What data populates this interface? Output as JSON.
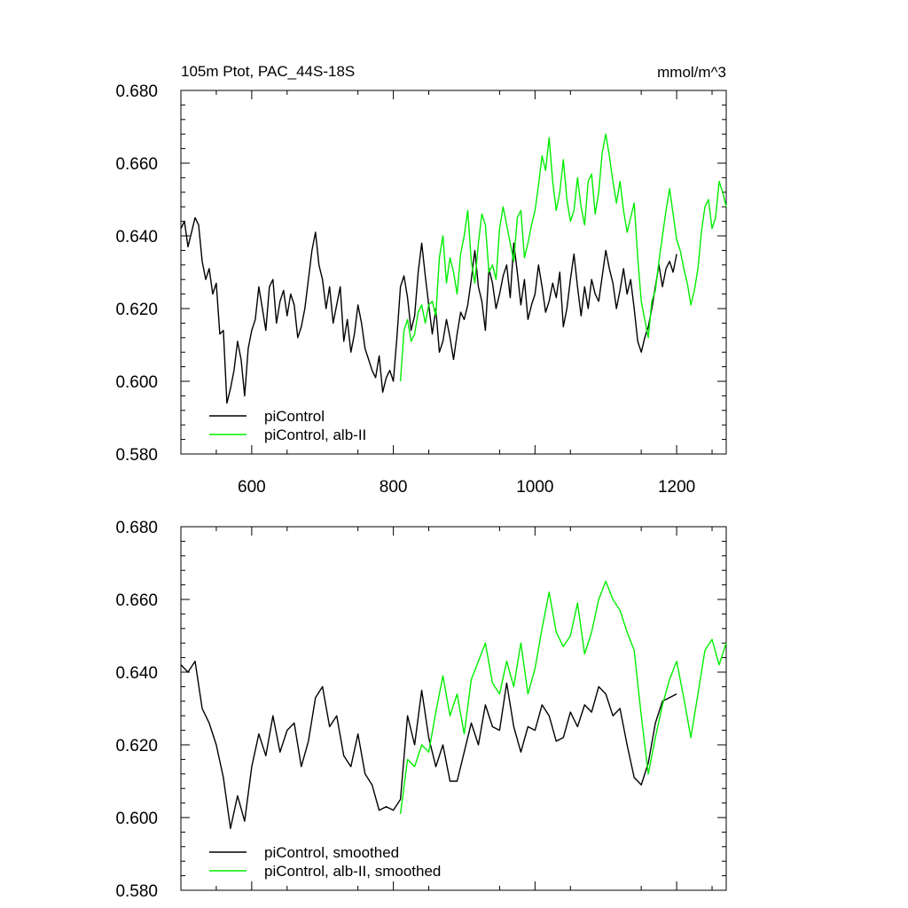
{
  "colors": {
    "piControl": "#000000",
    "alb_II": "#00ee00"
  },
  "chart_data": [
    {
      "type": "line",
      "title": "105m Ptot, PAC_44S-18S",
      "units": "mmol/m^3",
      "xlim": [
        500,
        1270
      ],
      "ylim": [
        0.58,
        0.68
      ],
      "xticks": [
        600,
        800,
        1000,
        1200
      ],
      "xtick_labels": [
        "600",
        "800",
        "1000",
        "1200"
      ],
      "yticks": [
        0.58,
        0.6,
        0.62,
        0.64,
        0.66,
        0.68
      ],
      "ytick_labels": [
        "0.580",
        "0.600",
        "0.620",
        "0.640",
        "0.660",
        "0.680"
      ],
      "legend_position": "bottom-left",
      "series": [
        {
          "name": "piControl",
          "color": "#000000",
          "x": [
            500,
            505,
            510,
            515,
            520,
            525,
            530,
            535,
            540,
            545,
            550,
            555,
            560,
            565,
            570,
            575,
            580,
            585,
            590,
            595,
            600,
            605,
            610,
            615,
            620,
            625,
            630,
            635,
            640,
            645,
            650,
            655,
            660,
            665,
            670,
            675,
            680,
            685,
            690,
            695,
            700,
            705,
            710,
            715,
            720,
            725,
            730,
            735,
            740,
            745,
            750,
            755,
            760,
            765,
            770,
            775,
            780,
            785,
            790,
            795,
            800,
            805,
            810,
            815,
            820,
            825,
            830,
            835,
            840,
            845,
            850,
            855,
            860,
            865,
            870,
            875,
            880,
            885,
            890,
            895,
            900,
            905,
            910,
            915,
            920,
            925,
            930,
            935,
            940,
            945,
            950,
            955,
            960,
            965,
            970,
            975,
            980,
            985,
            990,
            995,
            1000,
            1005,
            1010,
            1015,
            1020,
            1025,
            1030,
            1035,
            1040,
            1045,
            1050,
            1055,
            1060,
            1065,
            1070,
            1075,
            1080,
            1085,
            1090,
            1095,
            1100,
            1105,
            1110,
            1115,
            1120,
            1125,
            1130,
            1135,
            1140,
            1145,
            1150,
            1155,
            1160,
            1165,
            1170,
            1175,
            1180,
            1185,
            1190,
            1195,
            1200
          ],
          "y": [
            0.642,
            0.644,
            0.637,
            0.641,
            0.645,
            0.643,
            0.633,
            0.628,
            0.631,
            0.624,
            0.627,
            0.613,
            0.614,
            0.594,
            0.598,
            0.603,
            0.611,
            0.606,
            0.596,
            0.609,
            0.614,
            0.617,
            0.626,
            0.62,
            0.614,
            0.626,
            0.628,
            0.616,
            0.622,
            0.625,
            0.618,
            0.624,
            0.621,
            0.612,
            0.615,
            0.62,
            0.628,
            0.636,
            0.641,
            0.632,
            0.628,
            0.62,
            0.626,
            0.616,
            0.621,
            0.626,
            0.611,
            0.617,
            0.608,
            0.613,
            0.621,
            0.616,
            0.609,
            0.606,
            0.603,
            0.601,
            0.607,
            0.597,
            0.601,
            0.603,
            0.6,
            0.612,
            0.626,
            0.629,
            0.623,
            0.614,
            0.618,
            0.63,
            0.638,
            0.629,
            0.621,
            0.613,
            0.62,
            0.608,
            0.611,
            0.617,
            0.612,
            0.606,
            0.613,
            0.619,
            0.617,
            0.621,
            0.628,
            0.636,
            0.626,
            0.622,
            0.614,
            0.631,
            0.627,
            0.62,
            0.624,
            0.629,
            0.632,
            0.623,
            0.638,
            0.63,
            0.621,
            0.628,
            0.617,
            0.621,
            0.624,
            0.632,
            0.626,
            0.619,
            0.622,
            0.627,
            0.623,
            0.63,
            0.615,
            0.62,
            0.628,
            0.635,
            0.626,
            0.618,
            0.626,
            0.62,
            0.628,
            0.624,
            0.622,
            0.629,
            0.636,
            0.631,
            0.627,
            0.62,
            0.625,
            0.631,
            0.624,
            0.628,
            0.62,
            0.611,
            0.608,
            0.612,
            0.615,
            0.62,
            0.626,
            0.632,
            0.626,
            0.631,
            0.633,
            0.63,
            0.635
          ]
        },
        {
          "name": "piControl, alb-II",
          "color": "#00ee00",
          "x": [
            810,
            815,
            820,
            825,
            830,
            835,
            840,
            845,
            850,
            855,
            860,
            865,
            870,
            875,
            880,
            885,
            890,
            895,
            900,
            905,
            910,
            915,
            920,
            925,
            930,
            935,
            940,
            945,
            950,
            955,
            960,
            965,
            970,
            975,
            980,
            985,
            990,
            995,
            1000,
            1005,
            1010,
            1015,
            1020,
            1025,
            1030,
            1035,
            1040,
            1045,
            1050,
            1055,
            1060,
            1065,
            1070,
            1075,
            1080,
            1085,
            1090,
            1095,
            1100,
            1105,
            1110,
            1115,
            1120,
            1125,
            1130,
            1135,
            1140,
            1145,
            1150,
            1155,
            1160,
            1165,
            1170,
            1175,
            1180,
            1185,
            1190,
            1195,
            1200,
            1205,
            1210,
            1215,
            1220,
            1225,
            1230,
            1235,
            1240,
            1245,
            1250,
            1255,
            1260,
            1265,
            1270
          ],
          "y": [
            0.6,
            0.614,
            0.617,
            0.611,
            0.613,
            0.619,
            0.621,
            0.616,
            0.621,
            0.622,
            0.618,
            0.634,
            0.64,
            0.627,
            0.634,
            0.63,
            0.624,
            0.635,
            0.64,
            0.647,
            0.633,
            0.627,
            0.638,
            0.646,
            0.643,
            0.63,
            0.632,
            0.628,
            0.642,
            0.648,
            0.643,
            0.638,
            0.633,
            0.645,
            0.647,
            0.634,
            0.638,
            0.643,
            0.647,
            0.654,
            0.662,
            0.658,
            0.667,
            0.655,
            0.647,
            0.652,
            0.661,
            0.65,
            0.644,
            0.647,
            0.656,
            0.648,
            0.643,
            0.655,
            0.657,
            0.646,
            0.652,
            0.663,
            0.668,
            0.662,
            0.655,
            0.649,
            0.655,
            0.647,
            0.641,
            0.645,
            0.649,
            0.634,
            0.622,
            0.617,
            0.612,
            0.622,
            0.625,
            0.633,
            0.64,
            0.647,
            0.653,
            0.646,
            0.639,
            0.636,
            0.631,
            0.627,
            0.621,
            0.625,
            0.631,
            0.641,
            0.648,
            0.65,
            0.642,
            0.645,
            0.655,
            0.652,
            0.648
          ]
        }
      ]
    },
    {
      "type": "line",
      "xlim": [
        500,
        1270
      ],
      "ylim": [
        0.58,
        0.68
      ],
      "xticks": [
        600,
        800,
        1000,
        1200
      ],
      "yticks": [
        0.58,
        0.6,
        0.62,
        0.64,
        0.66,
        0.68
      ],
      "ytick_labels": [
        "0.580",
        "0.600",
        "0.620",
        "0.640",
        "0.660",
        "0.680"
      ],
      "legend_position": "bottom-left",
      "series": [
        {
          "name": "piControl, smoothed",
          "color": "#000000",
          "x": [
            500,
            510,
            520,
            530,
            540,
            550,
            560,
            570,
            580,
            590,
            600,
            610,
            620,
            630,
            640,
            650,
            660,
            670,
            680,
            690,
            700,
            710,
            720,
            730,
            740,
            750,
            760,
            770,
            780,
            790,
            800,
            810,
            820,
            830,
            840,
            850,
            860,
            870,
            880,
            890,
            900,
            910,
            920,
            930,
            940,
            950,
            960,
            970,
            980,
            990,
            1000,
            1010,
            1020,
            1030,
            1040,
            1050,
            1060,
            1070,
            1080,
            1090,
            1100,
            1110,
            1120,
            1130,
            1140,
            1150,
            1160,
            1170,
            1180,
            1190,
            1200
          ],
          "y": [
            0.642,
            0.64,
            0.643,
            0.63,
            0.626,
            0.62,
            0.611,
            0.597,
            0.606,
            0.599,
            0.614,
            0.623,
            0.617,
            0.628,
            0.618,
            0.624,
            0.626,
            0.614,
            0.621,
            0.633,
            0.636,
            0.625,
            0.628,
            0.617,
            0.614,
            0.623,
            0.612,
            0.609,
            0.602,
            0.603,
            0.602,
            0.605,
            0.628,
            0.62,
            0.635,
            0.622,
            0.614,
            0.62,
            0.61,
            0.61,
            0.618,
            0.626,
            0.62,
            0.631,
            0.625,
            0.624,
            0.637,
            0.625,
            0.618,
            0.625,
            0.624,
            0.631,
            0.628,
            0.621,
            0.622,
            0.629,
            0.625,
            0.631,
            0.629,
            0.636,
            0.634,
            0.628,
            0.63,
            0.62,
            0.611,
            0.609,
            0.615,
            0.626,
            0.632,
            0.633,
            0.634
          ]
        },
        {
          "name": "piControl, alb-II, smoothed",
          "color": "#00ee00",
          "x": [
            810,
            820,
            830,
            840,
            850,
            860,
            870,
            880,
            890,
            900,
            910,
            920,
            930,
            940,
            950,
            960,
            970,
            980,
            990,
            1000,
            1010,
            1020,
            1030,
            1040,
            1050,
            1060,
            1070,
            1080,
            1090,
            1100,
            1110,
            1120,
            1130,
            1140,
            1150,
            1160,
            1170,
            1180,
            1190,
            1200,
            1210,
            1220,
            1230,
            1240,
            1250,
            1260,
            1270
          ],
          "y": [
            0.601,
            0.616,
            0.614,
            0.62,
            0.618,
            0.629,
            0.639,
            0.628,
            0.634,
            0.623,
            0.638,
            0.643,
            0.648,
            0.637,
            0.634,
            0.643,
            0.636,
            0.648,
            0.634,
            0.641,
            0.652,
            0.662,
            0.651,
            0.647,
            0.65,
            0.659,
            0.645,
            0.651,
            0.66,
            0.665,
            0.66,
            0.657,
            0.651,
            0.646,
            0.628,
            0.612,
            0.622,
            0.631,
            0.638,
            0.643,
            0.633,
            0.622,
            0.634,
            0.646,
            0.649,
            0.642,
            0.648
          ]
        }
      ]
    }
  ]
}
